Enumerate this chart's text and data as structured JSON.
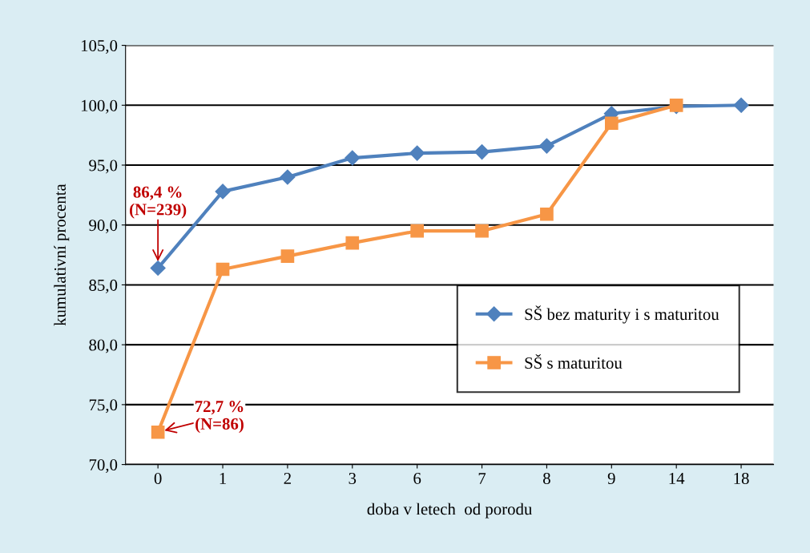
{
  "chart_data": {
    "type": "line",
    "xlabel": "doba v letech  od porodu",
    "ylabel": "kumulativní procenta",
    "categories": [
      "0",
      "1",
      "2",
      "3",
      "6",
      "7",
      "8",
      "9",
      "14",
      "18"
    ],
    "series": [
      {
        "name": "SŠ bez maturity i s maturitou",
        "color": "#4f81bd",
        "marker": "diamond",
        "values": [
          86.4,
          92.8,
          94.0,
          95.6,
          96.0,
          96.1,
          96.6,
          99.3,
          99.9,
          100.0
        ]
      },
      {
        "name": "SŠ s maturitou",
        "color": "#f79646",
        "marker": "square",
        "values": [
          72.7,
          86.3,
          87.4,
          88.5,
          89.5,
          89.5,
          90.9,
          98.5,
          100.0,
          null
        ]
      }
    ],
    "ylim": [
      70,
      105
    ],
    "yticks": [
      {
        "value": 70,
        "label": "70,0"
      },
      {
        "value": 75,
        "label": "75,0"
      },
      {
        "value": 80,
        "label": "80,0"
      },
      {
        "value": 85,
        "label": "85,0"
      },
      {
        "value": 90,
        "label": "90,0"
      },
      {
        "value": 95,
        "label": "95,0"
      },
      {
        "value": 100,
        "label": "100,0"
      },
      {
        "value": 105,
        "label": "105,0"
      }
    ],
    "grid": "y",
    "legend": "right",
    "annotations": [
      {
        "text": "86,4 %\n(N=239)",
        "x": "0",
        "y": 86.4
      },
      {
        "text": "72,7 %\n(N=86)",
        "x": "0",
        "y": 72.7
      }
    ]
  }
}
